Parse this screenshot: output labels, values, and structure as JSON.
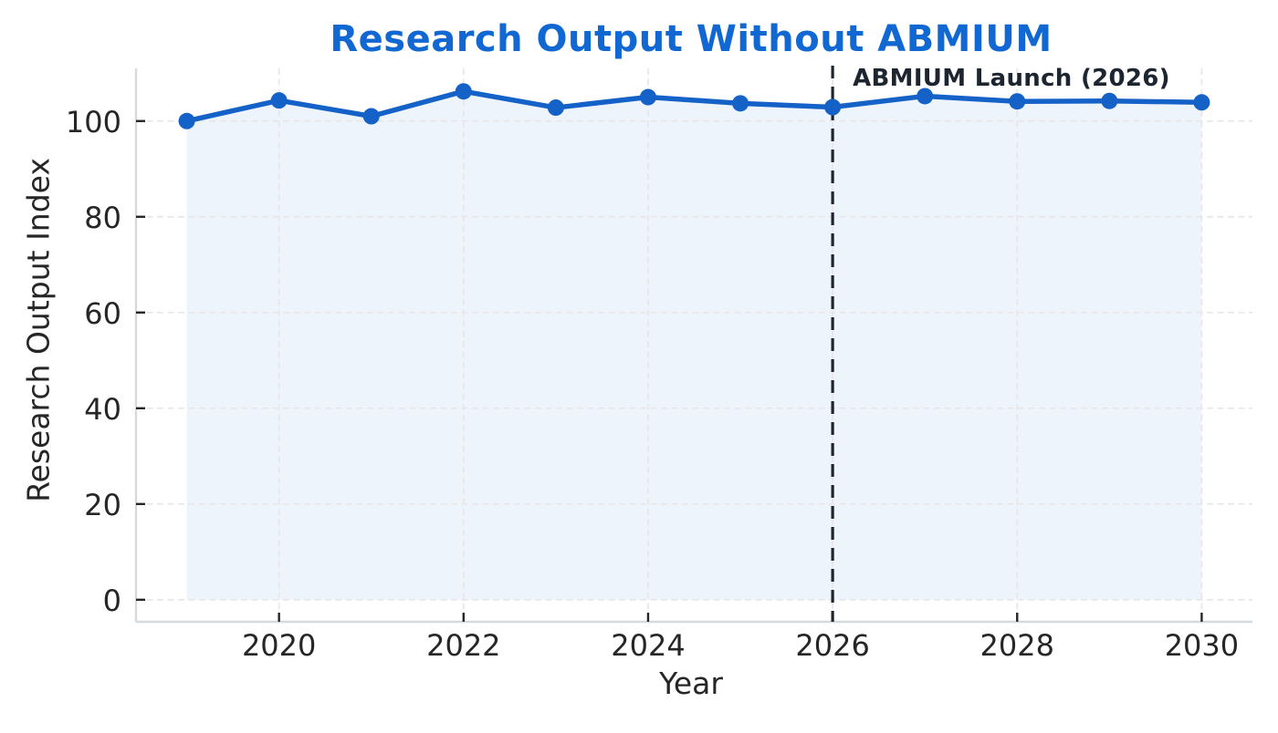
{
  "colors": {
    "title": "#1268D2",
    "line": "#1461C8",
    "fill": "#1461C8",
    "annotation": "#1C2530",
    "grid": "#E8E6E9",
    "spine": "#D6D9DE",
    "tick_text": "#262626"
  },
  "chart_data": {
    "type": "line",
    "title": "Research Output Without ABMIUM",
    "xlabel": "Year",
    "ylabel": "Research Output Index",
    "x": [
      2019,
      2020,
      2021,
      2022,
      2023,
      2024,
      2025,
      2026,
      2027,
      2028,
      2029,
      2030
    ],
    "series": [
      {
        "name": "Research Output Index",
        "values": [
          100.0,
          104.3,
          101.0,
          106.2,
          102.8,
          105.0,
          103.7,
          102.9,
          105.2,
          104.1,
          104.2,
          103.9
        ]
      }
    ],
    "xticks": [
      2020,
      2022,
      2024,
      2026,
      2028,
      2030
    ],
    "yticks": [
      0,
      20,
      40,
      60,
      80,
      100
    ],
    "xlim": [
      2018.45,
      2030.55
    ],
    "ylim": [
      -4.6,
      111.0
    ],
    "grid": true,
    "grid_style": "dashed",
    "legend": false,
    "area_fill": true,
    "marker": "circle",
    "annotation": {
      "label": "ABMIUM Launch (2026)",
      "x": 2026
    }
  }
}
